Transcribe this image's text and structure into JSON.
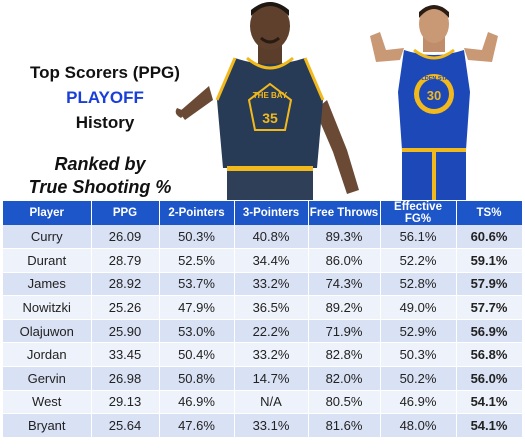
{
  "title": {
    "line1": "Top Scorers (PPG)",
    "line2": "PLAYOFF",
    "line3": "History"
  },
  "subtitle": {
    "line1": "Ranked by",
    "line2": "True Shooting %"
  },
  "colors": {
    "header_bg": "#1d56c9",
    "accent_text": "#1a3fd8",
    "row_odd": "#d9e1f4",
    "row_even": "#eef2fb",
    "warriors_navy": "#273b56",
    "warriors_blue": "#1d48b8",
    "warriors_gold": "#f2b91d"
  },
  "photos": {
    "left": {
      "jersey_text": "THE BAY",
      "number": "35"
    },
    "right": {
      "jersey_text": "GOLDEN STATE",
      "number": "30"
    }
  },
  "table": {
    "headers": [
      "Player",
      "PPG",
      "2-Pointers",
      "3-Pointers",
      "Free Throws",
      "Effective FG%",
      "TS%"
    ],
    "rows": [
      [
        "Curry",
        "26.09",
        "50.3%",
        "40.8%",
        "89.3%",
        "56.1%",
        "60.6%"
      ],
      [
        "Durant",
        "28.79",
        "52.5%",
        "34.4%",
        "86.0%",
        "52.2%",
        "59.1%"
      ],
      [
        "James",
        "28.92",
        "53.7%",
        "33.2%",
        "74.3%",
        "52.8%",
        "57.9%"
      ],
      [
        "Nowitzki",
        "25.26",
        "47.9%",
        "36.5%",
        "89.2%",
        "49.0%",
        "57.7%"
      ],
      [
        "Olajuwon",
        "25.90",
        "53.0%",
        "22.2%",
        "71.9%",
        "52.9%",
        "56.9%"
      ],
      [
        "Jordan",
        "33.45",
        "50.4%",
        "33.2%",
        "82.8%",
        "50.3%",
        "56.8%"
      ],
      [
        "Gervin",
        "26.98",
        "50.8%",
        "14.7%",
        "82.0%",
        "50.2%",
        "56.0%"
      ],
      [
        "West",
        "29.13",
        "46.9%",
        "N/A",
        "80.5%",
        "46.9%",
        "54.1%"
      ],
      [
        "Bryant",
        "25.64",
        "47.6%",
        "33.1%",
        "81.6%",
        "48.0%",
        "54.1%"
      ]
    ]
  }
}
